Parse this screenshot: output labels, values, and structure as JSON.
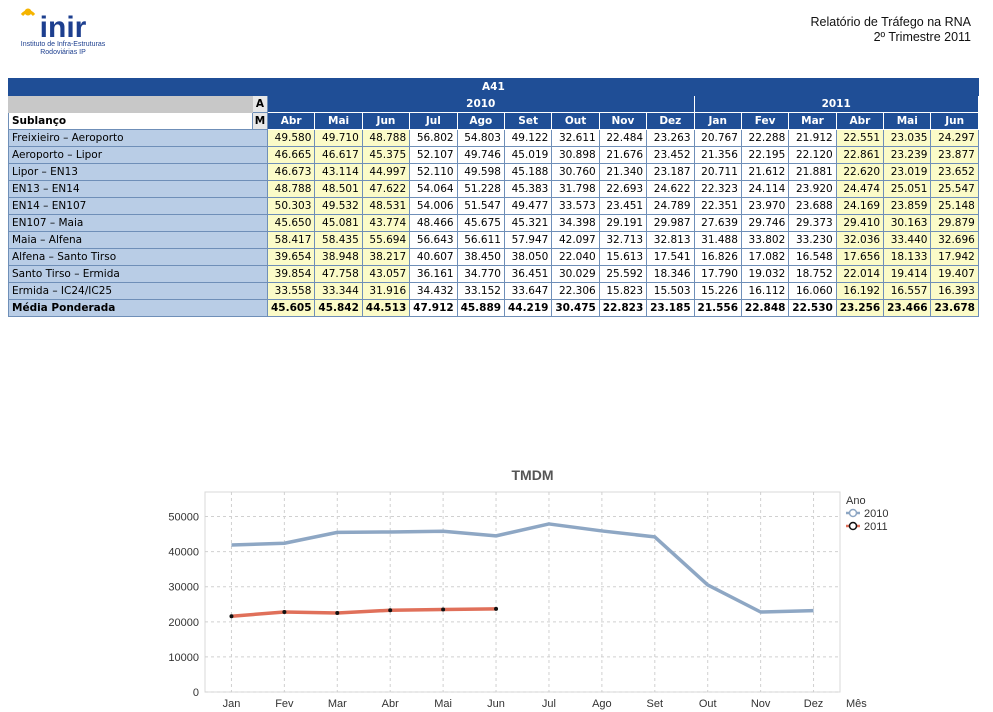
{
  "header": {
    "logo_text": "inir",
    "logo_sub1": "Instituto de Infra-Estruturas",
    "logo_sub2": "Rodoviárias IP",
    "report_title": "Relatório de Tráfego na RNA",
    "report_period": "2º Trimestre 2011",
    "brand_blue": "#1d3f8f",
    "brand_yellow": "#f5b400"
  },
  "table": {
    "title": "A41",
    "a_label": "A",
    "m_label": "M",
    "row_header": "Sublanço",
    "years": [
      {
        "label": "2010",
        "span": 9
      },
      {
        "label": "2011",
        "span": 6
      }
    ],
    "months": [
      "Abr",
      "Mai",
      "Jun",
      "Jul",
      "Ago",
      "Set",
      "Out",
      "Nov",
      "Dez",
      "Jan",
      "Fev",
      "Mar",
      "Abr",
      "Mai",
      "Jun"
    ],
    "highlight_columns": [
      0,
      1,
      2,
      12,
      13,
      14
    ],
    "rows": [
      {
        "name": "Freixieiro – Aeroporto",
        "values": [
          "49.580",
          "49.710",
          "48.788",
          "56.802",
          "54.803",
          "49.122",
          "32.611",
          "22.484",
          "23.263",
          "20.767",
          "22.288",
          "21.912",
          "22.551",
          "23.035",
          "24.297"
        ]
      },
      {
        "name": "Aeroporto – Lipor",
        "values": [
          "46.665",
          "46.617",
          "45.375",
          "52.107",
          "49.746",
          "45.019",
          "30.898",
          "21.676",
          "23.452",
          "21.356",
          "22.195",
          "22.120",
          "22.861",
          "23.239",
          "23.877"
        ]
      },
      {
        "name": "Lipor – EN13",
        "values": [
          "46.673",
          "43.114",
          "44.997",
          "52.110",
          "49.598",
          "45.188",
          "30.760",
          "21.340",
          "23.187",
          "20.711",
          "21.612",
          "21.881",
          "22.620",
          "23.019",
          "23.652"
        ]
      },
      {
        "name": "EN13 – EN14",
        "values": [
          "48.788",
          "48.501",
          "47.622",
          "54.064",
          "51.228",
          "45.383",
          "31.798",
          "22.693",
          "24.622",
          "22.323",
          "24.114",
          "23.920",
          "24.474",
          "25.051",
          "25.547"
        ]
      },
      {
        "name": "EN14 – EN107",
        "values": [
          "50.303",
          "49.532",
          "48.531",
          "54.006",
          "51.547",
          "49.477",
          "33.573",
          "23.451",
          "24.789",
          "22.351",
          "23.970",
          "23.688",
          "24.169",
          "23.859",
          "25.148"
        ]
      },
      {
        "name": "EN107 – Maia",
        "values": [
          "45.650",
          "45.081",
          "43.774",
          "48.466",
          "45.675",
          "45.321",
          "34.398",
          "29.191",
          "29.987",
          "27.639",
          "29.746",
          "29.373",
          "29.410",
          "30.163",
          "29.879"
        ]
      },
      {
        "name": "Maia – Alfena",
        "values": [
          "58.417",
          "58.435",
          "55.694",
          "56.643",
          "56.611",
          "57.947",
          "42.097",
          "32.713",
          "32.813",
          "31.488",
          "33.802",
          "33.230",
          "32.036",
          "33.440",
          "32.696"
        ]
      },
      {
        "name": "Alfena – Santo Tirso",
        "values": [
          "39.654",
          "38.948",
          "38.217",
          "40.607",
          "38.450",
          "38.050",
          "22.040",
          "15.613",
          "17.541",
          "16.826",
          "17.082",
          "16.548",
          "17.656",
          "18.133",
          "17.942"
        ]
      },
      {
        "name": "Santo Tirso – Ermida",
        "values": [
          "39.854",
          "47.758",
          "43.057",
          "36.161",
          "34.770",
          "36.451",
          "30.029",
          "25.592",
          "18.346",
          "17.790",
          "19.032",
          "18.752",
          "22.014",
          "19.414",
          "19.407"
        ]
      },
      {
        "name": "Ermida – IC24/IC25",
        "values": [
          "33.558",
          "33.344",
          "31.916",
          "34.432",
          "33.152",
          "33.647",
          "22.306",
          "15.823",
          "15.503",
          "15.226",
          "16.112",
          "16.060",
          "16.192",
          "16.557",
          "16.393"
        ]
      }
    ],
    "average": {
      "name": "Média Ponderada",
      "values": [
        "45.605",
        "45.842",
        "44.513",
        "47.912",
        "45.889",
        "44.219",
        "30.475",
        "22.823",
        "23.185",
        "21.556",
        "22.848",
        "22.530",
        "23.256",
        "23.466",
        "23.678"
      ]
    }
  },
  "chart_data": {
    "type": "line",
    "title": "TMDM",
    "xlabel": "Mês",
    "ylabel": "",
    "categories": [
      "Jan",
      "Fev",
      "Mar",
      "Abr",
      "Mai",
      "Jun",
      "Jul",
      "Ago",
      "Set",
      "Out",
      "Nov",
      "Dez"
    ],
    "ylim": [
      0,
      57000
    ],
    "yticks": [
      0,
      10000,
      20000,
      30000,
      40000,
      50000
    ],
    "grid": true,
    "legend_title": "Ano",
    "legend_placement": "right",
    "series": [
      {
        "name": "2010",
        "color": "#8ea7c4",
        "values": [
          41900,
          42400,
          45500,
          45600,
          45800,
          44500,
          47900,
          45900,
          44200,
          30500,
          22800,
          23200
        ]
      },
      {
        "name": "2011",
        "color": "#e0705a",
        "values": [
          21600,
          22800,
          22500,
          23300,
          23500,
          23700,
          null,
          null,
          null,
          null,
          null,
          null
        ]
      }
    ]
  }
}
